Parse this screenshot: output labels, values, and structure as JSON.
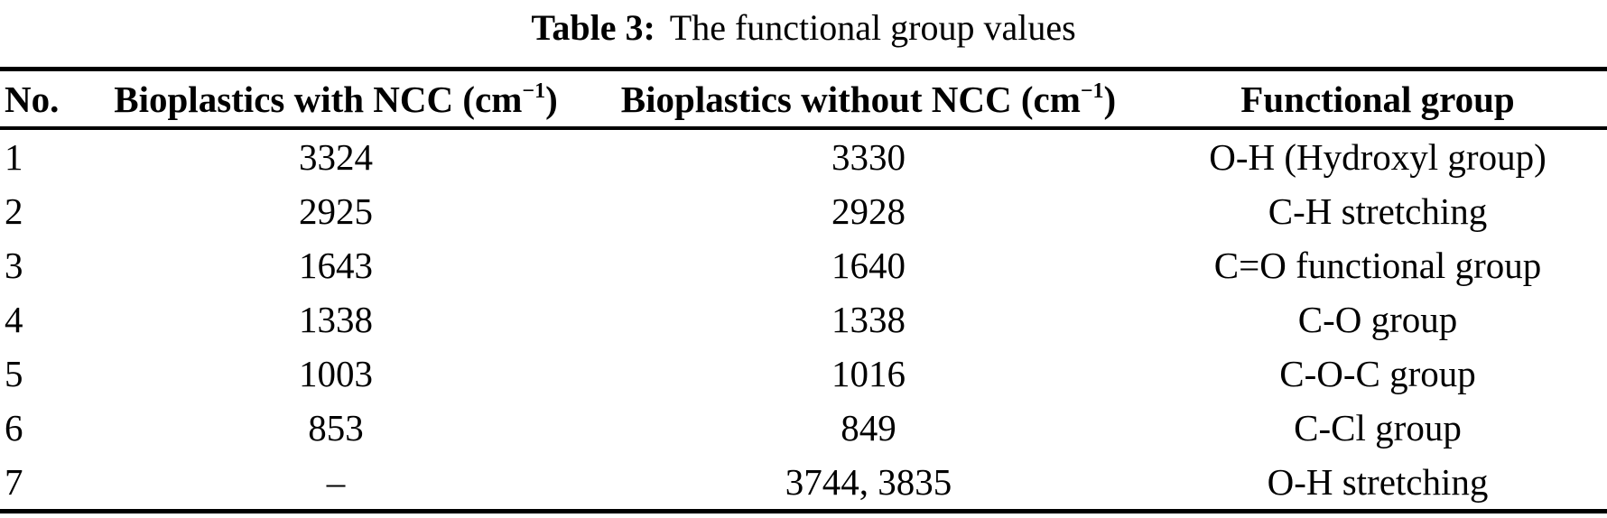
{
  "caption": {
    "label": "Table 3:",
    "text": "The functional group values"
  },
  "table": {
    "headers": [
      {
        "label": "No."
      },
      {
        "label": "Bioplastics with NCC (cm",
        "sup": "−1",
        "suffix": ")"
      },
      {
        "label": "Bioplastics without NCC (cm",
        "sup": "−1",
        "suffix": ")"
      },
      {
        "label": "Functional group"
      }
    ],
    "rows": [
      {
        "no": "1",
        "with_ncc": "3324",
        "without_ncc": "3330",
        "group": "O-H (Hydroxyl group)"
      },
      {
        "no": "2",
        "with_ncc": "2925",
        "without_ncc": "2928",
        "group": "C-H stretching"
      },
      {
        "no": "3",
        "with_ncc": "1643",
        "without_ncc": "1640",
        "group": "C=O functional group"
      },
      {
        "no": "4",
        "with_ncc": "1338",
        "without_ncc": "1338",
        "group": "C-O group"
      },
      {
        "no": "5",
        "with_ncc": "1003",
        "without_ncc": "1016",
        "group": "C-O-C group"
      },
      {
        "no": "6",
        "with_ncc": "853",
        "without_ncc": "849",
        "group": "C-Cl group"
      },
      {
        "no": "7",
        "with_ncc": "–",
        "without_ncc": "3744, 3835",
        "group": "O-H stretching"
      }
    ]
  },
  "colors": {
    "text": "#000000",
    "background": "#ffffff",
    "rule": "#000000"
  }
}
